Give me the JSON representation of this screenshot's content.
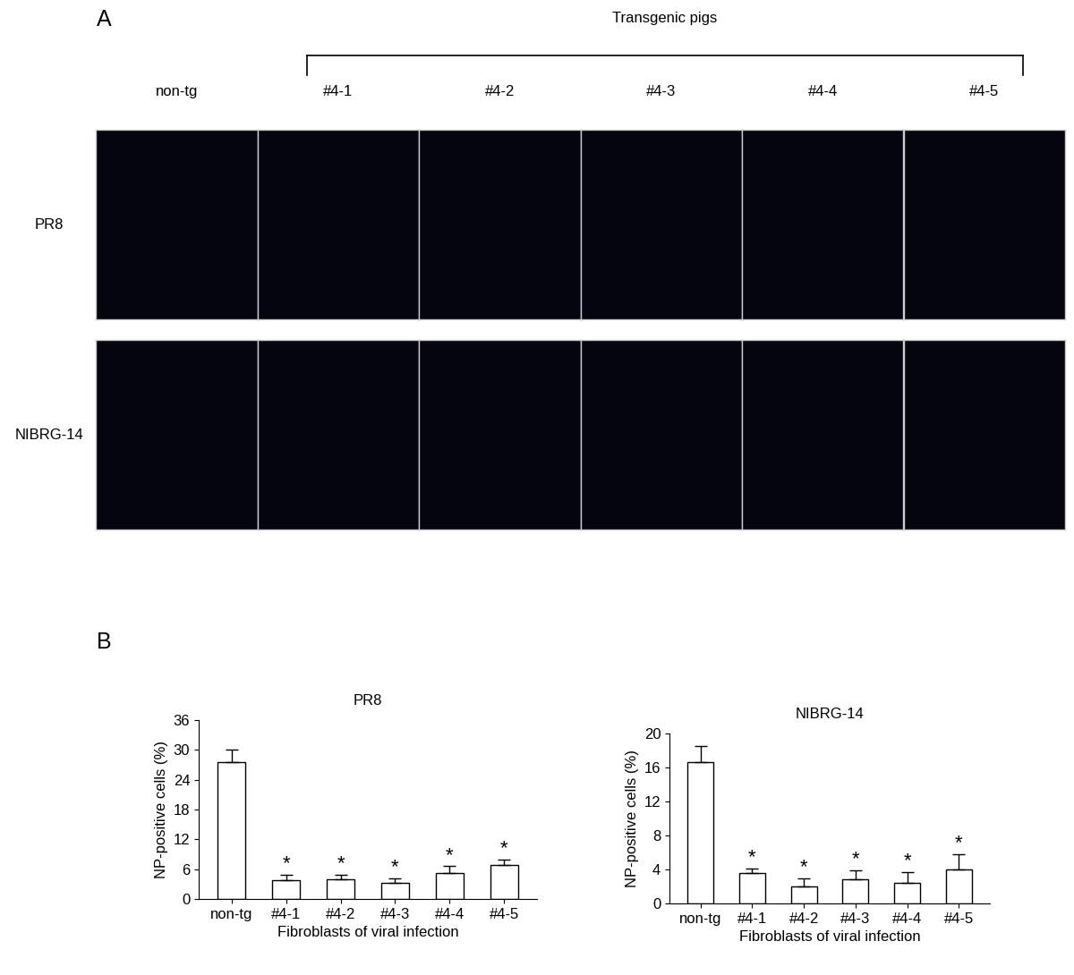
{
  "figure": {
    "panel_labels": [
      "A",
      "B"
    ],
    "images": {
      "group_label": "Transgenic pigs",
      "columns": [
        "non-tg",
        "#4-1",
        "#4-2",
        "#4-3",
        "#4-4",
        "#4-5"
      ],
      "rows": [
        "PR8",
        "NIBRG-14"
      ]
    }
  },
  "chart_data": [
    {
      "type": "bar",
      "title": "PR8",
      "x_label": "Fibroblasts of viral infection",
      "y_label": "NP-positive cells (%)",
      "categories": [
        "non-tg",
        "#4-1",
        "#4-2",
        "#4-3",
        "#4-4",
        "#4-5"
      ],
      "values": [
        27.5,
        3.7,
        4.0,
        3.3,
        5.3,
        6.8
      ],
      "errors": [
        2.5,
        1.2,
        0.9,
        0.9,
        1.3,
        1.2
      ],
      "color": "#ffffff",
      "ylim": [
        0,
        36
      ],
      "yticks": [
        0,
        6,
        12,
        18,
        24,
        30,
        36
      ],
      "annotations": [
        {
          "category": "#4-1",
          "text": "*"
        },
        {
          "category": "#4-2",
          "text": "*"
        },
        {
          "category": "#4-3",
          "text": "*"
        },
        {
          "category": "#4-4",
          "text": "*"
        },
        {
          "category": "#4-5",
          "text": "*"
        }
      ]
    },
    {
      "type": "bar",
      "title": "NIBRG-14",
      "x_label": "Fibroblasts of viral infection",
      "y_label": "NP-positive cells (%)",
      "categories": [
        "non-tg",
        "#4-1",
        "#4-2",
        "#4-3",
        "#4-4",
        "#4-5"
      ],
      "values": [
        16.6,
        3.6,
        2.0,
        2.8,
        2.4,
        4.0
      ],
      "errors": [
        1.9,
        0.5,
        1.0,
        1.1,
        1.3,
        1.8
      ],
      "color": "#ffffff",
      "ylim": [
        0,
        20
      ],
      "yticks": [
        0,
        4,
        8,
        12,
        16,
        20
      ],
      "annotations": [
        {
          "category": "#4-1",
          "text": "*"
        },
        {
          "category": "#4-2",
          "text": "*"
        },
        {
          "category": "#4-3",
          "text": "*"
        },
        {
          "category": "#4-4",
          "text": "*"
        },
        {
          "category": "#4-5",
          "text": "*"
        }
      ]
    }
  ]
}
